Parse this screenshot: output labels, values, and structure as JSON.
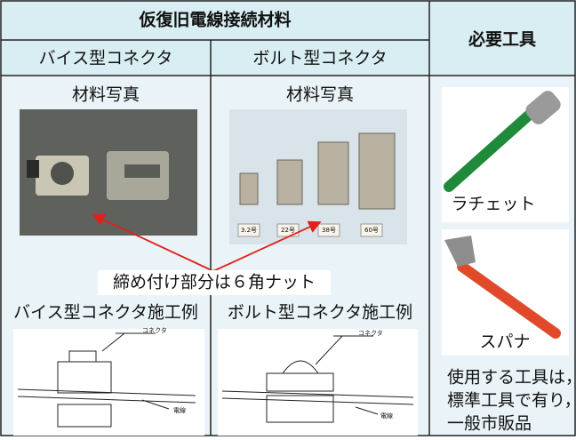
{
  "header": {
    "title": "仮復旧電線接続材料",
    "tools_title": "必要工具"
  },
  "columns": [
    {
      "name": "バイス型コネクタ",
      "photo_caption": "材料写真",
      "example_title": "バイス型コネクタ施工例",
      "diagram_labels": [
        "コネクタ",
        "電線"
      ]
    },
    {
      "name": "ボルト型コネクタ",
      "photo_caption": "材料写真",
      "example_title": "ボルト型コネクタ施工例",
      "diagram_labels": [
        "コネクタ",
        "電線"
      ],
      "size_labels": [
        "3.2号",
        "22号",
        "38号",
        "60号"
      ]
    }
  ],
  "callout": "締め付け部分は６角ナット",
  "tools": [
    {
      "label": "ラチェット"
    },
    {
      "label": "スパナ"
    }
  ],
  "tools_note": [
    "使用する工具は，",
    "標準工具で有り，",
    "一般市販品"
  ]
}
